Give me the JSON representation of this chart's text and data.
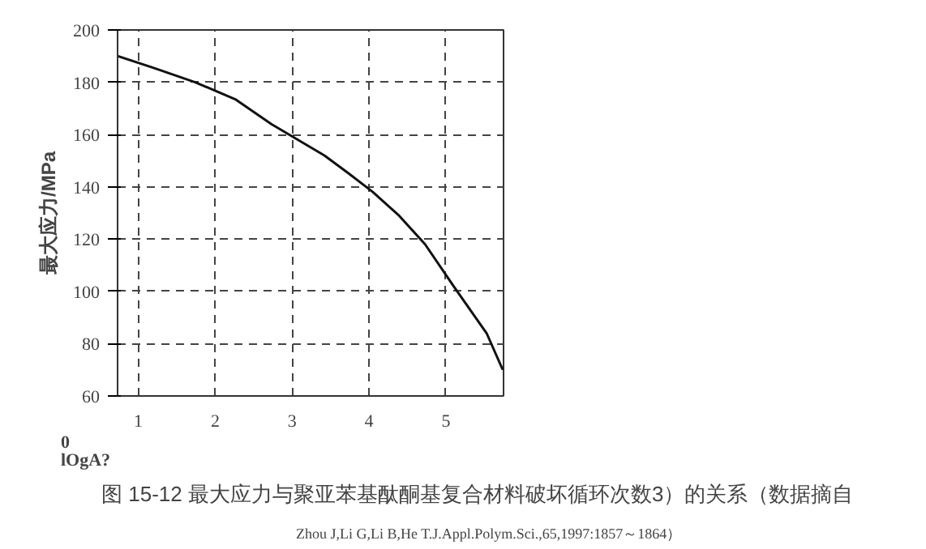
{
  "chart_data": {
    "type": "line",
    "title": "图 15-12 最大应力与聚亚苯基酞酮基复合材料破坏循环次数3）的关系（数据摘自",
    "ylabel": "最大应力/MPa",
    "annotations": [
      "0",
      "lOgA?",
      "Zhou J,Li G,Li B,He T.J.Appl.Polym.Sci.,65,1997:1857～1864）"
    ],
    "series": [
      {
        "color": "#111111",
        "x": [
          0.73,
          1.2,
          1.74,
          2.26,
          2.73,
          3.42,
          3.74,
          4.05,
          4.39,
          4.73,
          5.1,
          5.53,
          5.74
        ],
        "values": [
          190,
          185.5,
          180,
          173.5,
          164,
          152,
          145,
          138,
          129,
          118,
          102,
          84,
          70
        ]
      }
    ],
    "xlim": [
      0.73,
      5.75
    ],
    "xticks": [
      1,
      2,
      3,
      4,
      5
    ],
    "ylim": [
      60,
      200
    ],
    "yticks": [
      60,
      80,
      100,
      120,
      140,
      160,
      180,
      200
    ],
    "grid": true,
    "line_style": "solid",
    "marker": "none"
  }
}
